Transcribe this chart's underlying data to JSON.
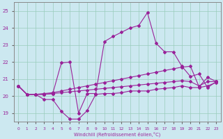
{
  "x": [
    0,
    1,
    2,
    3,
    4,
    5,
    6,
    7,
    8,
    9,
    10,
    11,
    12,
    13,
    14,
    15,
    16,
    17,
    18,
    19,
    20,
    21,
    22,
    23
  ],
  "line_volatile": [
    20.6,
    20.1,
    20.1,
    19.8,
    19.8,
    19.1,
    18.65,
    18.65,
    19.15,
    20.1,
    20.15,
    20.15,
    20.2,
    20.3,
    20.3,
    20.3,
    20.4,
    20.45,
    20.5,
    20.6,
    20.5,
    20.5,
    20.6,
    20.8
  ],
  "line_flat1": [
    20.6,
    20.1,
    20.1,
    20.1,
    20.15,
    20.2,
    20.25,
    20.3,
    20.35,
    20.4,
    20.45,
    20.5,
    20.55,
    20.6,
    20.65,
    20.7,
    20.75,
    20.8,
    20.85,
    20.9,
    20.85,
    20.6,
    20.85,
    20.85
  ],
  "line_flat2": [
    20.6,
    20.1,
    20.1,
    20.15,
    20.2,
    20.3,
    20.4,
    20.5,
    20.6,
    20.7,
    20.8,
    20.9,
    21.0,
    21.1,
    21.2,
    21.3,
    21.4,
    21.5,
    21.6,
    21.7,
    21.75,
    20.55,
    21.1,
    20.85
  ],
  "line_spike": [
    20.6,
    20.1,
    20.1,
    20.1,
    20.15,
    21.95,
    22.0,
    19.0,
    20.15,
    20.15,
    23.2,
    23.5,
    23.75,
    24.0,
    24.15,
    24.9,
    23.1,
    22.6,
    22.6,
    21.75,
    21.15,
    21.3,
    20.5,
    20.85
  ],
  "line_color": "#992299",
  "bg_color": "#cce8f0",
  "grid_color": "#99ccbb",
  "xlabel": "Windchill (Refroidissement éolien,°C)",
  "ylim": [
    18.5,
    25.5
  ],
  "xlim": [
    -0.5,
    23.5
  ],
  "yticks": [
    19,
    20,
    21,
    22,
    23,
    24,
    25
  ],
  "xticks": [
    0,
    1,
    2,
    3,
    4,
    5,
    6,
    7,
    8,
    9,
    10,
    11,
    12,
    13,
    14,
    15,
    16,
    17,
    18,
    19,
    20,
    21,
    22,
    23
  ]
}
